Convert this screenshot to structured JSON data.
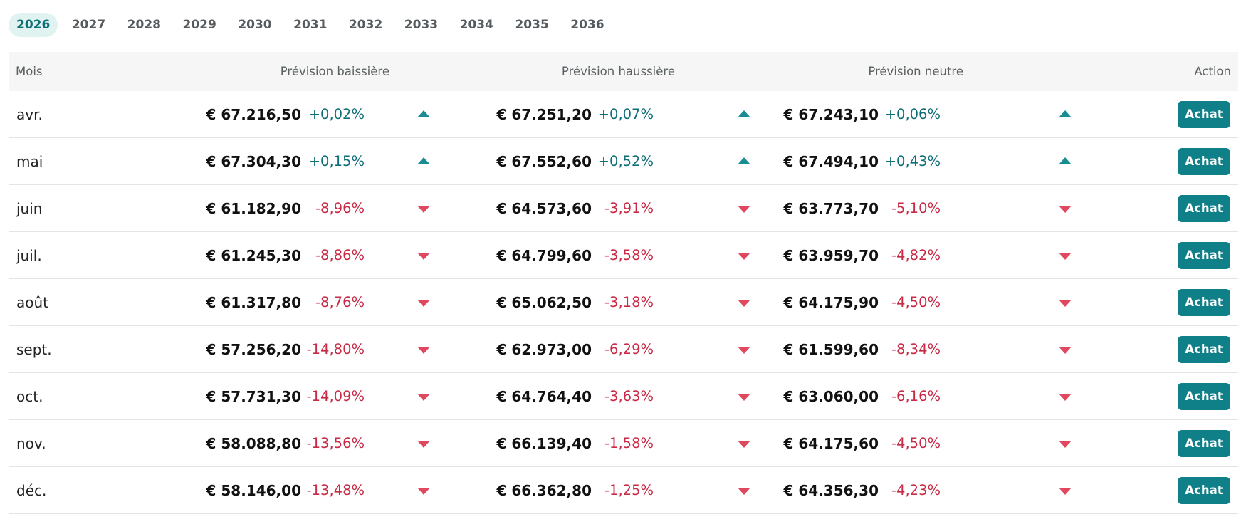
{
  "year_tabs": [
    "2026",
    "2027",
    "2028",
    "2029",
    "2030",
    "2031",
    "2032",
    "2033",
    "2034",
    "2035",
    "2036"
  ],
  "active_year": "2026",
  "table": {
    "headers": {
      "month": "Mois",
      "bearish": "Prévision baissière",
      "bullish": "Prévision haussière",
      "neutral": "Prévision neutre",
      "action": "Action"
    },
    "action_label": "Achat",
    "rows": [
      {
        "month": "avr.",
        "bear_price": "€ 67.216,50",
        "bear_pct": "+0,02%",
        "bear_dir": "up",
        "bull_price": "€ 67.251,20",
        "bull_pct": "+0,07%",
        "bull_dir": "up",
        "neut_price": "€ 67.243,10",
        "neut_pct": "+0,06%",
        "neut_dir": "up"
      },
      {
        "month": "mai",
        "bear_price": "€ 67.304,30",
        "bear_pct": "+0,15%",
        "bear_dir": "up",
        "bull_price": "€ 67.552,60",
        "bull_pct": "+0,52%",
        "bull_dir": "up",
        "neut_price": "€ 67.494,10",
        "neut_pct": "+0,43%",
        "neut_dir": "up"
      },
      {
        "month": "juin",
        "bear_price": "€ 61.182,90",
        "bear_pct": "-8,96%",
        "bear_dir": "down",
        "bull_price": "€ 64.573,60",
        "bull_pct": "-3,91%",
        "bull_dir": "down",
        "neut_price": "€ 63.773,70",
        "neut_pct": "-5,10%",
        "neut_dir": "down"
      },
      {
        "month": "juil.",
        "bear_price": "€ 61.245,30",
        "bear_pct": "-8,86%",
        "bear_dir": "down",
        "bull_price": "€ 64.799,60",
        "bull_pct": "-3,58%",
        "bull_dir": "down",
        "neut_price": "€ 63.959,70",
        "neut_pct": "-4,82%",
        "neut_dir": "down"
      },
      {
        "month": "août",
        "bear_price": "€ 61.317,80",
        "bear_pct": "-8,76%",
        "bear_dir": "down",
        "bull_price": "€ 65.062,50",
        "bull_pct": "-3,18%",
        "bull_dir": "down",
        "neut_price": "€ 64.175,90",
        "neut_pct": "-4,50%",
        "neut_dir": "down"
      },
      {
        "month": "sept.",
        "bear_price": "€ 57.256,20",
        "bear_pct": "-14,80%",
        "bear_dir": "down",
        "bull_price": "€ 62.973,00",
        "bull_pct": "-6,29%",
        "bull_dir": "down",
        "neut_price": "€ 61.599,60",
        "neut_pct": "-8,34%",
        "neut_dir": "down"
      },
      {
        "month": "oct.",
        "bear_price": "€ 57.731,30",
        "bear_pct": "-14,09%",
        "bear_dir": "down",
        "bull_price": "€ 64.764,40",
        "bull_pct": "-3,63%",
        "bull_dir": "down",
        "neut_price": "€ 63.060,00",
        "neut_pct": "-6,16%",
        "neut_dir": "down"
      },
      {
        "month": "nov.",
        "bear_price": "€ 58.088,80",
        "bear_pct": "-13,56%",
        "bear_dir": "down",
        "bull_price": "€ 66.139,40",
        "bull_pct": "-1,58%",
        "bull_dir": "down",
        "neut_price": "€ 64.175,60",
        "neut_pct": "-4,50%",
        "neut_dir": "down"
      },
      {
        "month": "déc.",
        "bear_price": "€ 58.146,00",
        "bear_pct": "-13,48%",
        "bear_dir": "down",
        "bull_price": "€ 66.362,80",
        "bull_pct": "-1,25%",
        "bull_dir": "down",
        "neut_price": "€ 64.356,30",
        "neut_pct": "-4,23%",
        "neut_dir": "down"
      }
    ]
  },
  "colors": {
    "accent": "#0f7f88",
    "up": "#0f6f78",
    "down": "#c92a45",
    "active_tab_bg": "#e1f3f1",
    "header_bg": "#f6f6f6"
  },
  "icons": {
    "up": "triangle-up-icon",
    "down": "triangle-down-icon"
  }
}
